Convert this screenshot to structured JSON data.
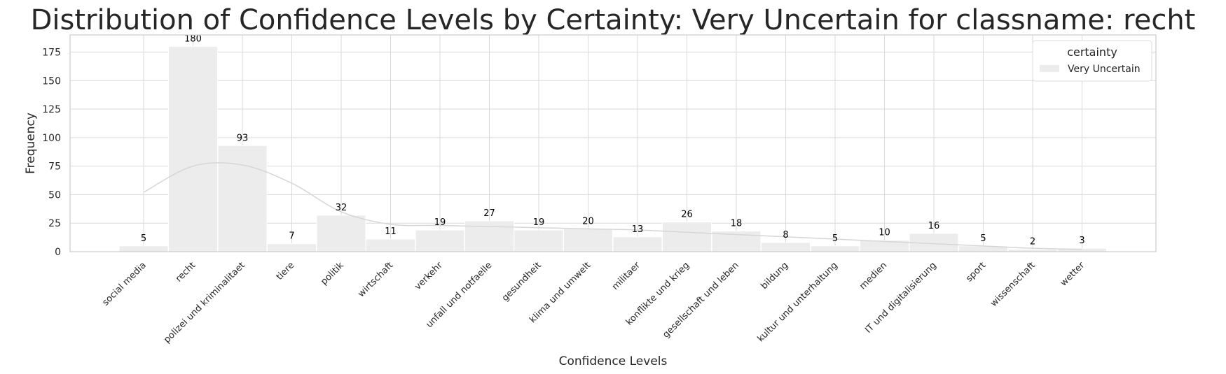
{
  "chart_data": {
    "type": "bar",
    "title": "Distribution of Confidence Levels by Certainty: Very Uncertain for classname: recht",
    "xlabel": "Confidence Levels",
    "ylabel": "Frequency",
    "ylim": [
      0,
      190
    ],
    "yticks": [
      0,
      25,
      50,
      75,
      100,
      125,
      150,
      175
    ],
    "grid": true,
    "legend": {
      "title": "certainty",
      "placement": "top-right"
    },
    "series": [
      {
        "name": "Very Uncertain",
        "color": "#ececec",
        "values": [
          5,
          180,
          93,
          7,
          32,
          11,
          19,
          27,
          19,
          20,
          13,
          26,
          18,
          8,
          5,
          10,
          16,
          5,
          2,
          3
        ]
      }
    ],
    "categories": [
      "social media",
      "recht",
      "polizei und kriminalitaet",
      "tiere",
      "politik",
      "wirtschaft",
      "verkehr",
      "unfall und notfaelle",
      "gesundheit",
      "klima und umwelt",
      "militaer",
      "konflikte und krieg",
      "gesellschaft und leben",
      "bildung",
      "kultur und unterhaltung",
      "medien",
      "IT und digitalisierung",
      "sport",
      "wissenschaft",
      "wetter"
    ],
    "kde_line": {
      "color": "#d6d6d6",
      "values": [
        52,
        75,
        76,
        60,
        35,
        24,
        23,
        22,
        21,
        20,
        19,
        17,
        15,
        13,
        11,
        9,
        7,
        5,
        3,
        2
      ]
    }
  }
}
